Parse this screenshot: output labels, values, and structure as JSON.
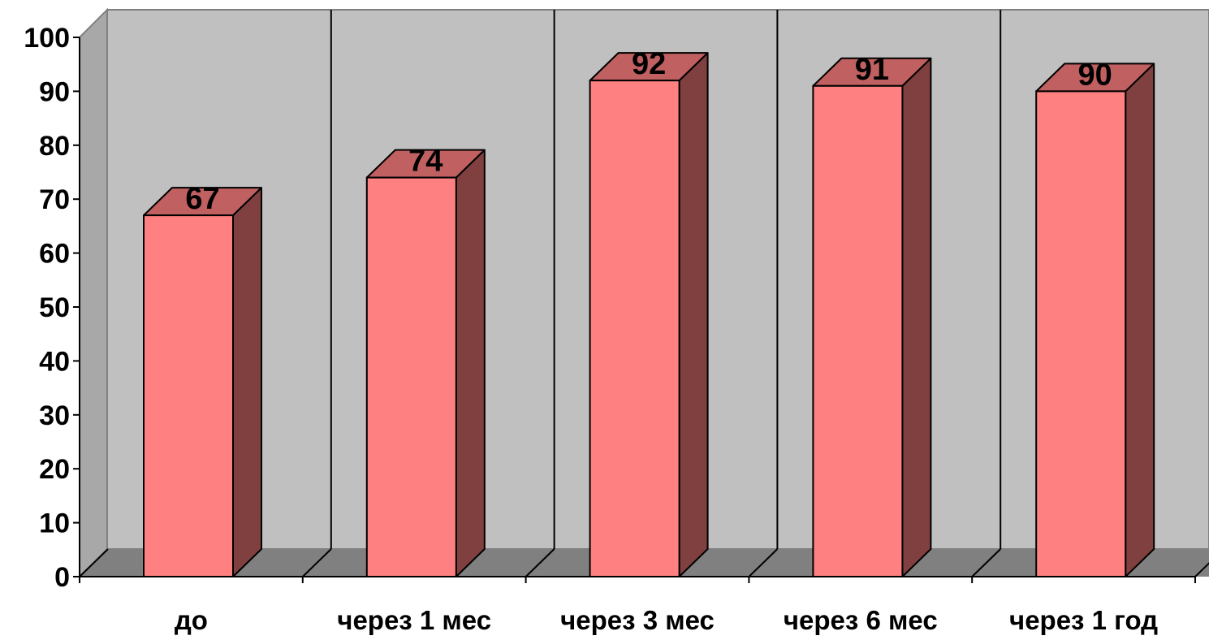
{
  "chart_data": {
    "type": "bar",
    "style": "3d-column",
    "categories": [
      "до",
      "через 1 мес",
      "через 3 мес",
      "через 6 мес",
      "через 1 год"
    ],
    "values": [
      67,
      74,
      92,
      91,
      90
    ],
    "ylim": [
      0,
      100
    ],
    "yticks": [
      "0",
      "10",
      "20",
      "30",
      "40",
      "50",
      "60",
      "70",
      "80",
      "90",
      "100"
    ],
    "data_labels": [
      "67",
      "74",
      "92",
      "91",
      "90"
    ],
    "grid": "vertical category separators",
    "legend": "none",
    "colors": {
      "bar_front": "#ff8080",
      "bar_top": "#c06060",
      "bar_side": "#804040",
      "back_wall": "#c0c0c0",
      "floor": "#808080"
    }
  }
}
